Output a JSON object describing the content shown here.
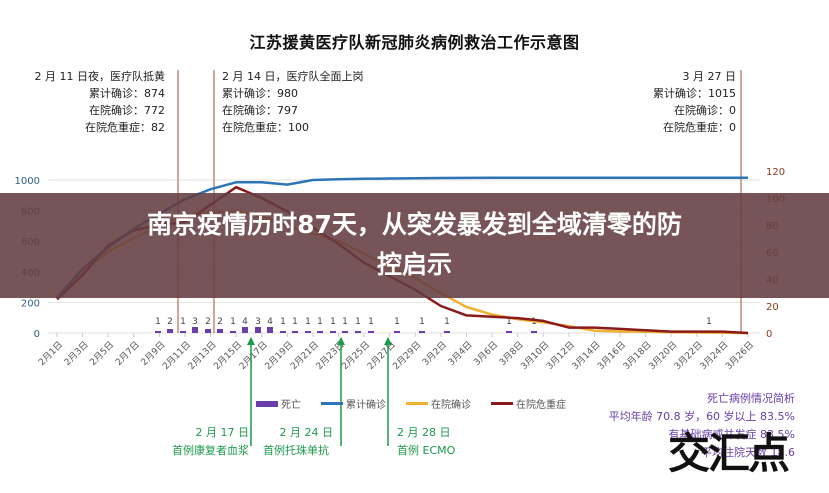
{
  "title": "江苏援黄医疗队新冠肺炎病例救治工作示意图",
  "banner": {
    "line1": "南京疫情历时87天，从突发暴发到全域清零的防",
    "line2": "控启示"
  },
  "annotations": {
    "feb11": {
      "head": "2 月 11 日夜，医疗队抵黄",
      "l1": "累计确诊：874",
      "l2": "在院确诊：772",
      "l3": "在院危重症：82"
    },
    "feb14": {
      "head": "2 月 14 日，医疗队全面上岗",
      "l1": "累计确诊：980",
      "l2": "在院确诊：797",
      "l3": "在院危重症：100"
    },
    "mar27": {
      "head": "3 月 27 日",
      "l1": "累计确诊：1015",
      "l2": "在院确诊：0",
      "l3": "在院危重症：0"
    }
  },
  "milestones": [
    {
      "date": "2 月 17 日",
      "event": "首例康复者血浆"
    },
    {
      "date": "2 月 24 日",
      "event": "首例托珠单抗"
    },
    {
      "date": "2 月 28 日",
      "event": "首例 ECMO"
    }
  ],
  "legend": {
    "death": "死亡",
    "cumulative": "累计确诊",
    "hospitalized": "在院确诊",
    "critical": "在院危重症"
  },
  "death_summary": {
    "title": "死亡病例情况简析",
    "l1": "平均年龄 70.8 岁，60 岁以上 83.5%",
    "l2": "有基础病或并发症 83.5%",
    "l3": "平均住院天数 18.6"
  },
  "watermark": "交汇点",
  "colors": {
    "cumulative": "#2e75b6",
    "hospitalized": "#f0b030",
    "critical": "#8b1a1a",
    "death": "#6a3ea8",
    "milestone": "#1a9a4a",
    "vline": "#a0522d"
  },
  "chart_data": {
    "type": "line",
    "title": "江苏援黄医疗队新冠肺炎病例救治工作示意图",
    "x": [
      "2月1日",
      "2月3日",
      "2月5日",
      "2月7日",
      "2月9日",
      "2月11日",
      "2月13日",
      "2月15日",
      "2月17日",
      "2月19日",
      "2月21日",
      "2月23日",
      "2月25日",
      "2月27日",
      "2月29日",
      "3月2日",
      "3月4日",
      "3月6日",
      "3月8日",
      "3月10日",
      "3月12日",
      "3月14日",
      "3月16日",
      "3月18日",
      "3月20日",
      "3月22日",
      "3月24日",
      "3月26日"
    ],
    "y_left_ticks": [
      0,
      200,
      400,
      600,
      800,
      1000
    ],
    "y_right_ticks": [
      0,
      20,
      40,
      60,
      80,
      100,
      120
    ],
    "ylim_left": [
      0,
      1000
    ],
    "ylim_right": [
      0,
      120
    ],
    "series": [
      {
        "name": "累计确诊",
        "axis": "left",
        "values": [
          230,
          420,
          560,
          680,
          780,
          874,
          940,
          985,
          985,
          970,
          1000,
          1005,
          1008,
          1010,
          1012,
          1013,
          1014,
          1015,
          1015,
          1015,
          1015,
          1015,
          1015,
          1015,
          1015,
          1015,
          1015,
          1015
        ]
      },
      {
        "name": "在院确诊",
        "axis": "left",
        "values": [
          220,
          400,
          530,
          620,
          700,
          772,
          790,
          797,
          760,
          700,
          650,
          600,
          520,
          430,
          360,
          260,
          170,
          120,
          90,
          70,
          45,
          15,
          10,
          8,
          5,
          3,
          1,
          0
        ]
      },
      {
        "name": "在院危重症",
        "axis": "right",
        "values": [
          25,
          43,
          65,
          76,
          80,
          82,
          95,
          108,
          100,
          90,
          78,
          66,
          52,
          42,
          32,
          20,
          13,
          12,
          11,
          9,
          4,
          4,
          3,
          2,
          1,
          1,
          1,
          0
        ]
      },
      {
        "name": "死亡",
        "axis": "right",
        "type": "bar",
        "values": [
          0,
          0,
          0,
          0,
          1,
          2,
          3,
          2,
          4,
          4,
          1,
          1,
          1,
          1,
          1,
          1,
          1,
          0,
          1,
          1,
          0,
          0,
          0,
          0,
          0,
          0,
          1,
          0
        ]
      }
    ],
    "death_labels": [
      1,
      2,
      1,
      3,
      2,
      2,
      1,
      4,
      3,
      4,
      1,
      1,
      1,
      1,
      1,
      1,
      1,
      1,
      1,
      1,
      1,
      1,
      1
    ],
    "legend_position": "bottom"
  }
}
